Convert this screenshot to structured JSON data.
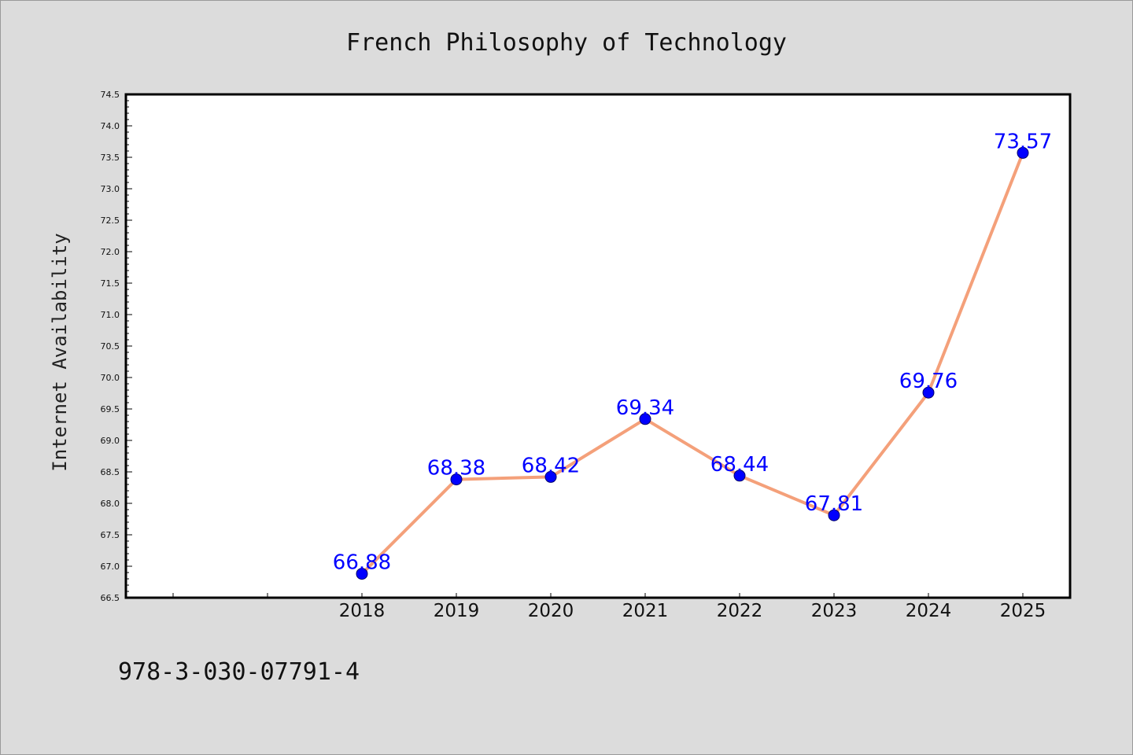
{
  "chart_data": {
    "type": "line",
    "title": "French Philosophy of Technology",
    "xlabel": "",
    "ylabel": "Internet Availability",
    "categories": [
      "2018",
      "2019",
      "2020",
      "2021",
      "2022",
      "2023",
      "2024",
      "2025"
    ],
    "values": [
      66.88,
      68.38,
      68.42,
      69.34,
      68.44,
      67.81,
      69.76,
      73.57
    ],
    "data_labels": [
      "66.88",
      "68.38",
      "68.42",
      "69.34",
      "68.44",
      "67.81",
      "69.76",
      "73.57"
    ],
    "ylim": [
      66.5,
      74.5
    ],
    "xlim": [
      2015.5,
      2025.5
    ],
    "yticks": [
      "66.5",
      "67.0",
      "67.5",
      "68.0",
      "68.5",
      "69.0",
      "69.5",
      "70.0",
      "70.5",
      "71.0",
      "71.5",
      "72.0",
      "72.5",
      "73.0",
      "73.5",
      "74.0",
      "74.5"
    ],
    "grid": false,
    "legend": "none",
    "colors": {
      "line": "#f4a07a",
      "marker": "#0000ff",
      "labels": "#0000ff",
      "background": "#dcdcdc",
      "plot_background": "#ffffff"
    }
  },
  "footer": {
    "isbn": "978-3-030-07791-4"
  }
}
